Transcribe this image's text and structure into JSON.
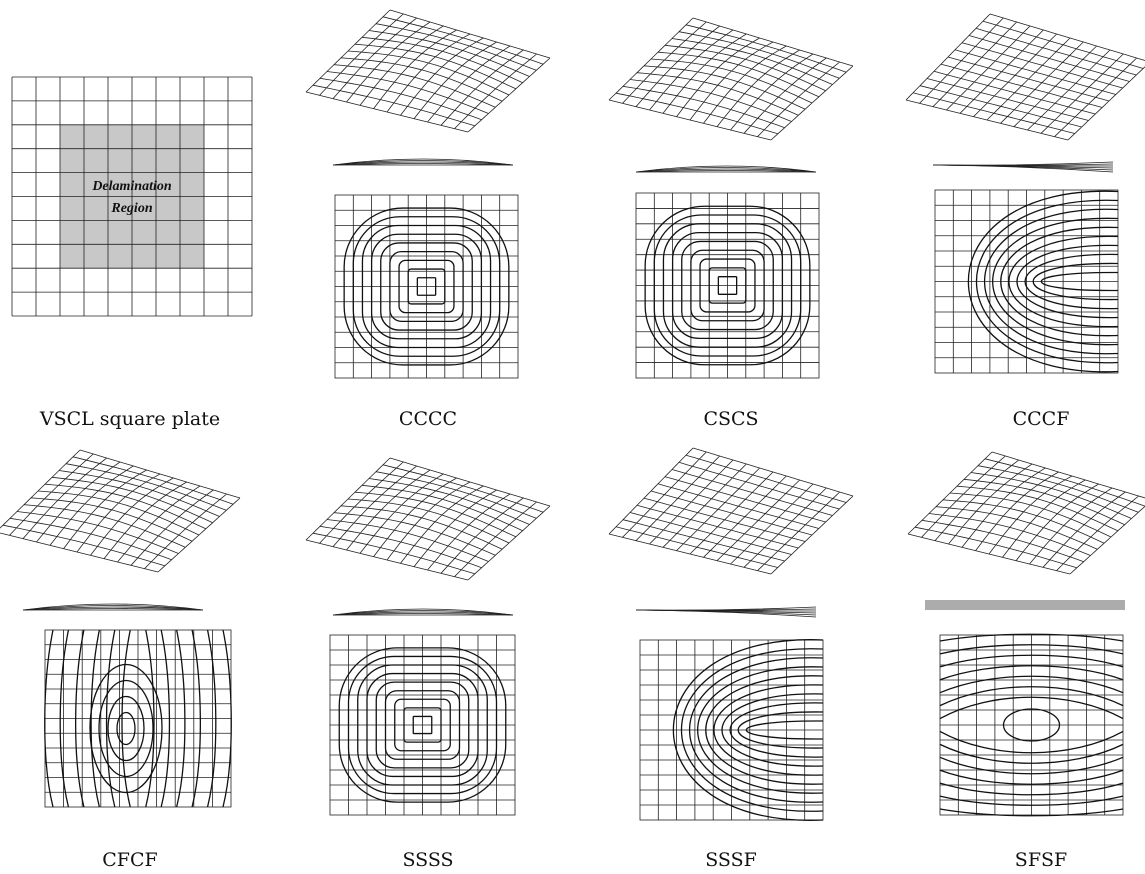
{
  "figure": {
    "plate_label": {
      "line1": "Delamination",
      "line2": "Region"
    },
    "captions": [
      "VSCL square plate",
      "CCCC",
      "CSCS",
      "CCCF",
      "CFCF",
      "SSSS",
      "SSSF",
      "SFSF"
    ]
  }
}
